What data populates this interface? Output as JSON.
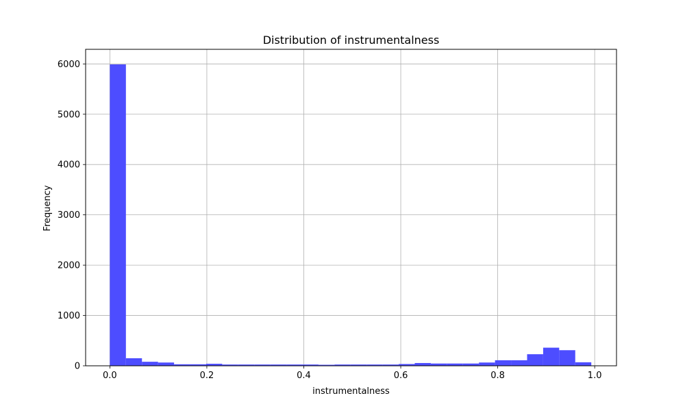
{
  "chart_data": {
    "type": "bar",
    "title": "Distribution of instrumentalness",
    "xlabel": "instrumentalness",
    "ylabel": "Frequency",
    "bar_color": "#4d4dff",
    "grid": true,
    "xlim": [
      -0.05,
      1.045
    ],
    "ylim": [
      0,
      6290
    ],
    "xticks": [
      0.0,
      0.2,
      0.4,
      0.6,
      0.8,
      1.0
    ],
    "xtick_labels": [
      "0.0",
      "0.2",
      "0.4",
      "0.6",
      "0.8",
      "1.0"
    ],
    "yticks": [
      0,
      1000,
      2000,
      3000,
      4000,
      5000,
      6000
    ],
    "ytick_labels": [
      "0",
      "1000",
      "2000",
      "3000",
      "4000",
      "5000",
      "6000"
    ],
    "bins": {
      "start": 0.0,
      "width": 0.0331,
      "values": [
        5990,
        150,
        80,
        65,
        30,
        30,
        40,
        25,
        25,
        25,
        25,
        25,
        25,
        20,
        25,
        25,
        25,
        25,
        35,
        55,
        45,
        45,
        45,
        65,
        110,
        110,
        230,
        360,
        310,
        70
      ]
    }
  }
}
